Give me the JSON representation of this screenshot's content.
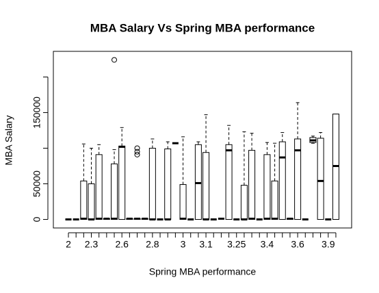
{
  "chart_data": {
    "type": "box",
    "title": "MBA Salary Vs Spring MBA performance",
    "xlabel": "Spring MBA performance",
    "ylabel": "MBA Salary",
    "categories": [
      "2",
      null,
      null,
      "2.3",
      null,
      null,
      null,
      "2.6",
      null,
      null,
      null,
      "2.8",
      null,
      null,
      null,
      "3",
      null,
      null,
      "3.1",
      null,
      null,
      null,
      "3.25",
      null,
      null,
      null,
      "3.4",
      null,
      null,
      null,
      "3.6",
      null,
      null,
      null,
      "3.9",
      null
    ],
    "boxes": [
      {
        "min": 0,
        "q1": 0,
        "median": 0,
        "q3": 0,
        "max": 0,
        "outliers": []
      },
      {
        "min": 0,
        "q1": 0,
        "median": 0,
        "q3": 0,
        "max": 0,
        "outliers": []
      },
      {
        "min": 0,
        "q1": 0,
        "median": 1000,
        "q3": 54000,
        "max": 106000,
        "outliers": []
      },
      {
        "min": 0,
        "q1": 0,
        "median": 0,
        "q3": 50000,
        "max": 100000,
        "outliers": []
      },
      {
        "min": 0,
        "q1": 0,
        "median": 1000,
        "q3": 91000,
        "max": 105000,
        "outliers": []
      },
      {
        "min": 0,
        "q1": 0,
        "median": 1000,
        "q3": 1000,
        "max": 1000,
        "outliers": []
      },
      {
        "min": 0,
        "q1": 0,
        "median": 1000,
        "q3": 78000,
        "max": 98000,
        "outliers": [
          224000
        ]
      },
      {
        "min": 0,
        "q1": 0,
        "median": 102000,
        "q3": 103000,
        "max": 129000,
        "outliers": []
      },
      {
        "min": 0,
        "q1": 0,
        "median": 1000,
        "q3": 1000,
        "max": 1000,
        "outliers": []
      },
      {
        "min": 0,
        "q1": 0,
        "median": 1000,
        "q3": 1000,
        "max": 1000,
        "outliers": [
          100000,
          95000,
          91000
        ]
      },
      {
        "min": 0,
        "q1": 0,
        "median": 1000,
        "q3": 1000,
        "max": 1000,
        "outliers": []
      },
      {
        "min": 0,
        "q1": 0,
        "median": 0,
        "q3": 100000,
        "max": 113000,
        "outliers": []
      },
      {
        "min": 0,
        "q1": 0,
        "median": 0,
        "q3": 0,
        "max": 0,
        "outliers": []
      },
      {
        "min": 0,
        "q1": 0,
        "median": 0,
        "q3": 99000,
        "max": 109000,
        "outliers": []
      },
      {
        "min": 107000,
        "q1": 107000,
        "median": 107000,
        "q3": 107000,
        "max": 107000,
        "outliers": []
      },
      {
        "min": 0,
        "q1": 0,
        "median": 1000,
        "q3": 49000,
        "max": 116000,
        "outliers": []
      },
      {
        "min": 0,
        "q1": 0,
        "median": 0,
        "q3": 0,
        "max": 0,
        "outliers": []
      },
      {
        "min": 0,
        "q1": 0,
        "median": 51000,
        "q3": 105000,
        "max": 109000,
        "outliers": []
      },
      {
        "min": 0,
        "q1": 0,
        "median": 0,
        "q3": 94000,
        "max": 147000,
        "outliers": []
      },
      {
        "min": 0,
        "q1": 0,
        "median": 0,
        "q3": 0,
        "max": 0,
        "outliers": []
      },
      {
        "min": 1000,
        "q1": 1000,
        "median": 1000,
        "q3": 1000,
        "max": 1000,
        "outliers": []
      },
      {
        "min": 0,
        "q1": 0,
        "median": 97000,
        "q3": 105000,
        "max": 132000,
        "outliers": []
      },
      {
        "min": 0,
        "q1": 0,
        "median": 0,
        "q3": 0,
        "max": 0,
        "outliers": []
      },
      {
        "min": 0,
        "q1": 0,
        "median": 0,
        "q3": 48000,
        "max": 123000,
        "outliers": []
      },
      {
        "min": 0,
        "q1": 0,
        "median": 1000,
        "q3": 97000,
        "max": 121000,
        "outliers": []
      },
      {
        "min": 0,
        "q1": 0,
        "median": 0,
        "q3": 0,
        "max": 0,
        "outliers": []
      },
      {
        "min": 0,
        "q1": 0,
        "median": 1000,
        "q3": 91000,
        "max": 108000,
        "outliers": []
      },
      {
        "min": 0,
        "q1": 0,
        "median": 1000,
        "q3": 54000,
        "max": 107000,
        "outliers": []
      },
      {
        "min": 0,
        "q1": 0,
        "median": 87000,
        "q3": 109000,
        "max": 122000,
        "outliers": []
      },
      {
        "min": 0,
        "q1": 0,
        "median": 1000,
        "q3": 1000,
        "max": 1000,
        "outliers": []
      },
      {
        "min": 0,
        "q1": 0,
        "median": 97000,
        "q3": 113000,
        "max": 164000,
        "outliers": []
      },
      {
        "min": 0,
        "q1": 0,
        "median": 0,
        "q3": 0,
        "max": 0,
        "outliers": []
      },
      {
        "min": 107000,
        "q1": 108000,
        "median": 111000,
        "q3": 115000,
        "max": 117000,
        "outliers": []
      },
      {
        "min": 0,
        "q1": 0,
        "median": 54000,
        "q3": 114000,
        "max": 122000,
        "outliers": []
      },
      {
        "min": 0,
        "q1": 0,
        "median": 0,
        "q3": 0,
        "max": 0,
        "outliers": []
      },
      {
        "min": 0,
        "q1": 0,
        "median": 75000,
        "q3": 148000,
        "max": 148000,
        "outliers": []
      }
    ],
    "ylim": [
      -12000,
      236000
    ],
    "yticks": [
      0,
      50000,
      150000
    ],
    "yticks_unlabeled": [
      100000,
      200000
    ],
    "color": "#000000",
    "box_fill": "#ffffff"
  }
}
